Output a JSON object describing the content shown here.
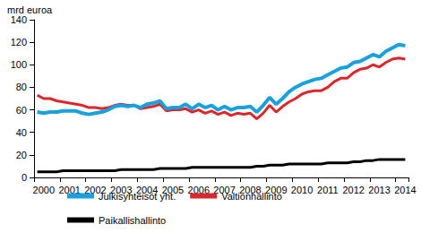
{
  "chart_data": {
    "type": "line",
    "y_label": "mrd euroa",
    "categories": [
      null,
      "2000",
      null,
      null,
      null,
      "2001",
      null,
      null,
      null,
      "2002",
      null,
      null,
      null,
      "2003",
      null,
      null,
      null,
      "2004",
      null,
      null,
      null,
      "2005",
      null,
      null,
      null,
      "2006",
      null,
      null,
      null,
      "2007",
      null,
      null,
      null,
      "2008",
      null,
      null,
      null,
      "2009",
      null,
      null,
      null,
      "2010",
      null,
      null,
      null,
      "2011",
      null,
      null,
      null,
      "2012",
      null,
      null,
      null,
      "2013",
      null,
      null,
      null,
      "2014"
    ],
    "series": [
      {
        "name": "Julkisyhteisöt yht.",
        "color": "#1aa0dc",
        "values": [
          58,
          57,
          58,
          58,
          59,
          59,
          59,
          57,
          56,
          57,
          58,
          60,
          63,
          64,
          63,
          64,
          62,
          65,
          66,
          68,
          61,
          62,
          62,
          65,
          61,
          65,
          62,
          64,
          60,
          63,
          60,
          62,
          62,
          63,
          58,
          64,
          71,
          65,
          70,
          76,
          80,
          83,
          85,
          87,
          88,
          91,
          94,
          97,
          98,
          102,
          103,
          106,
          109,
          107,
          112,
          115,
          118,
          117
        ]
      },
      {
        "name": "Valtionhallinto",
        "color": "#d9272e",
        "values": [
          73,
          70,
          70,
          68,
          67,
          66,
          65,
          64,
          62,
          62,
          61,
          62,
          64,
          65,
          64,
          64,
          61,
          62,
          63,
          65,
          59,
          60,
          60,
          61,
          58,
          60,
          57,
          59,
          56,
          58,
          55,
          57,
          56,
          57,
          52,
          57,
          64,
          58,
          63,
          67,
          70,
          74,
          76,
          77,
          77,
          80,
          85,
          88,
          88,
          93,
          96,
          97,
          100,
          98,
          102,
          105,
          106,
          105
        ]
      },
      {
        "name": "Paikallishallinto",
        "color": "#000000",
        "values": [
          5,
          5,
          5,
          5,
          6,
          6,
          6,
          6,
          6,
          6,
          6,
          6,
          6,
          7,
          7,
          7,
          7,
          7,
          7,
          8,
          8,
          8,
          8,
          8,
          9,
          9,
          9,
          9,
          9,
          9,
          9,
          9,
          9,
          9,
          10,
          10,
          11,
          11,
          11,
          12,
          12,
          12,
          12,
          12,
          12,
          13,
          13,
          13,
          13,
          14,
          14,
          15,
          15,
          16,
          16,
          16,
          16,
          16
        ]
      }
    ],
    "ylim": [
      0,
      140
    ],
    "yticks": [
      0,
      20,
      40,
      60,
      80,
      100,
      120,
      140
    ],
    "grid": false,
    "legend": "bottom"
  }
}
